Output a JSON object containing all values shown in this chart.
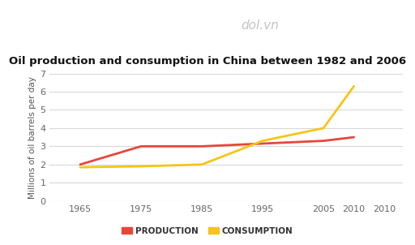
{
  "title": "Oil production and consumption in China between 1982 and 2006",
  "ylabel": "Millions of oil barrels per day",
  "xlim": [
    1960,
    2018
  ],
  "ylim": [
    0,
    7
  ],
  "yticks": [
    0,
    1,
    2,
    3,
    4,
    5,
    6,
    7
  ],
  "xticks": [
    1965,
    1975,
    1985,
    1995,
    2005,
    2010,
    2010
  ],
  "xtick_labels": [
    "1965",
    "1975",
    "1985",
    "1995",
    "2005",
    "2010",
    "2010"
  ],
  "production": {
    "x": [
      1965,
      1975,
      1985,
      1995,
      2005,
      2010
    ],
    "y": [
      2.0,
      3.0,
      3.0,
      3.15,
      3.3,
      3.5
    ],
    "color": "#e8463a",
    "label": "PRODUCTION"
  },
  "consumption": {
    "x": [
      1965,
      1975,
      1985,
      1995,
      2005,
      2010
    ],
    "y": [
      1.85,
      1.9,
      2.0,
      3.3,
      4.0,
      6.3
    ],
    "color": "#f5c518",
    "label": "CONSUMPTION"
  },
  "background_color": "#ffffff",
  "grid_color": "#d8d8d8",
  "title_fontsize": 9.5,
  "axis_label_fontsize": 7.5,
  "tick_fontsize": 8,
  "legend_fontsize": 7.5
}
